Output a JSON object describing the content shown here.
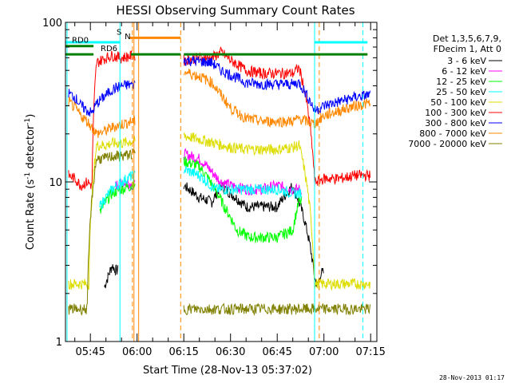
{
  "chart_data": {
    "type": "line",
    "title": "HESSI Observing Summary Count Rates",
    "xlabel": "Start Time (28-Nov-13 05:37:02)",
    "ylabel": "Count Rate (s",
    "ylabel_sup": "-1",
    "ylabel_tail": " detector",
    "ylabel_close": ")",
    "yscale": "log",
    "ylim": [
      1,
      100
    ],
    "xlim": [
      "05:37",
      "07:17"
    ],
    "y_ticks": [
      {
        "value": 1,
        "label": "1"
      },
      {
        "value": 10,
        "label": "10"
      },
      {
        "value": 100,
        "label": "100"
      }
    ],
    "x_ticks": [
      {
        "value": "05:45",
        "label": "05:45"
      },
      {
        "value": "06:00",
        "label": "06:00"
      },
      {
        "value": "06:15",
        "label": "06:15"
      },
      {
        "value": "06:30",
        "label": "06:30"
      },
      {
        "value": "06:45",
        "label": "06:45"
      },
      {
        "value": "07:00",
        "label": "07:00"
      },
      {
        "value": "07:15",
        "label": "07:15"
      }
    ],
    "legend_position": "right",
    "legend_header": [
      "Det 1,3,5,6,7,9,",
      "FDecim 1, Att 0"
    ],
    "series": [
      {
        "name": "3 - 6 keV",
        "color": "#000000",
        "points": [
          [
            "05:49:30",
            2.2
          ],
          [
            "05:50:30",
            2.5
          ],
          [
            "05:52:00",
            3.0
          ],
          [
            "05:53:00",
            2.8
          ],
          [
            "06:15:00",
            9.5
          ],
          [
            "06:20:00",
            8.0
          ],
          [
            "06:24:00",
            7.5
          ],
          [
            "06:27:00",
            9.5
          ],
          [
            "06:30:00",
            8.5
          ],
          [
            "06:35:00",
            7.0
          ],
          [
            "06:40:00",
            7.0
          ],
          [
            "06:45:00",
            7.0
          ],
          [
            "06:50:00",
            9.5
          ],
          [
            "06:52:00",
            7.5
          ],
          [
            "06:57:00",
            2.5
          ],
          [
            "06:58:00",
            2.2
          ],
          [
            "06:59:00",
            2.7
          ]
        ]
      },
      {
        "name": "6 - 12 keV",
        "color": "#ff00ff",
        "points": [
          [
            "05:53:00",
            9.5
          ],
          [
            "05:55:00",
            9.8
          ],
          [
            "05:57:00",
            10.0
          ],
          [
            "05:58:30",
            9.5
          ],
          [
            "06:15:00",
            15.0
          ],
          [
            "06:20:00",
            14.0
          ],
          [
            "06:25:00",
            11.0
          ],
          [
            "06:27:00",
            10.0
          ],
          [
            "06:30:00",
            9.5
          ],
          [
            "06:35:00",
            9.0
          ],
          [
            "06:40:00",
            9.0
          ],
          [
            "06:45:00",
            9.5
          ],
          [
            "06:50:00",
            9.0
          ],
          [
            "06:52:00",
            9.0
          ]
        ]
      },
      {
        "name": "12 - 25 keV",
        "color": "#00ff00",
        "points": [
          [
            "05:48:00",
            6.5
          ],
          [
            "05:50:00",
            7.5
          ],
          [
            "05:52:00",
            8.5
          ],
          [
            "05:55:00",
            9.0
          ],
          [
            "05:58:30",
            9.5
          ],
          [
            "06:15:00",
            13.5
          ],
          [
            "06:20:00",
            12.5
          ],
          [
            "06:25:00",
            9.0
          ],
          [
            "06:28:00",
            7.0
          ],
          [
            "06:32:00",
            5.0
          ],
          [
            "06:36:00",
            4.5
          ],
          [
            "06:40:00",
            4.5
          ],
          [
            "06:45:00",
            4.5
          ],
          [
            "06:50:00",
            5.0
          ],
          [
            "06:52:00",
            7.5
          ]
        ]
      },
      {
        "name": "25 - 50 keV",
        "color": "#00ffff",
        "points": [
          [
            "05:48:00",
            7.0
          ],
          [
            "05:50:00",
            8.0
          ],
          [
            "05:52:00",
            9.0
          ],
          [
            "05:55:00",
            10.0
          ],
          [
            "05:58:30",
            11.0
          ],
          [
            "06:15:00",
            12.0
          ],
          [
            "06:20:00",
            11.0
          ],
          [
            "06:25:00",
            9.0
          ],
          [
            "06:30:00",
            9.0
          ],
          [
            "06:40:00",
            9.0
          ],
          [
            "06:45:00",
            9.0
          ],
          [
            "06:50:00",
            8.5
          ],
          [
            "06:52:00",
            8.5
          ]
        ]
      },
      {
        "name": "50 - 100 keV",
        "color": "#dddd00",
        "points": [
          [
            "05:38:00",
            2.3
          ],
          [
            "05:42:00",
            2.3
          ],
          [
            "05:44:30",
            2.3
          ],
          [
            "05:47:00",
            17.0
          ],
          [
            "05:50:00",
            17.0
          ],
          [
            "05:52:00",
            17.5
          ],
          [
            "05:55:00",
            17.5
          ],
          [
            "05:58:30",
            18.0
          ],
          [
            "06:15:00",
            19.5
          ],
          [
            "06:20:00",
            18.5
          ],
          [
            "06:25:00",
            17.5
          ],
          [
            "06:30:00",
            16.5
          ],
          [
            "06:35:00",
            16.0
          ],
          [
            "06:40:00",
            16.0
          ],
          [
            "06:45:00",
            16.0
          ],
          [
            "06:50:00",
            16.5
          ],
          [
            "06:52:00",
            17.0
          ],
          [
            "06:57:00",
            2.3
          ],
          [
            "07:00:00",
            2.3
          ],
          [
            "07:05:00",
            2.3
          ],
          [
            "07:10:00",
            2.3
          ],
          [
            "07:14:00",
            2.3
          ]
        ]
      },
      {
        "name": "100 - 300 keV",
        "color": "#ff0000",
        "points": [
          [
            "05:38:00",
            11.0
          ],
          [
            "05:40:00",
            10.5
          ],
          [
            "05:42:00",
            9.5
          ],
          [
            "05:44:00",
            10.0
          ],
          [
            "05:45:30",
            9.5
          ],
          [
            "05:47:00",
            56.0
          ],
          [
            "05:50:00",
            60.0
          ],
          [
            "05:52:00",
            62.0
          ],
          [
            "05:55:00",
            60.0
          ],
          [
            "05:58:30",
            62.0
          ],
          [
            "06:15:00",
            58.0
          ],
          [
            "06:20:00",
            60.0
          ],
          [
            "06:24:00",
            60.0
          ],
          [
            "06:27:00",
            65.0
          ],
          [
            "06:30:00",
            58.0
          ],
          [
            "06:35:00",
            50.0
          ],
          [
            "06:40:00",
            48.0
          ],
          [
            "06:45:00",
            48.0
          ],
          [
            "06:50:00",
            48.0
          ],
          [
            "06:52:00",
            52.0
          ],
          [
            "06:57:00",
            10.0
          ],
          [
            "07:00:00",
            10.5
          ],
          [
            "07:05:00",
            10.5
          ],
          [
            "07:10:00",
            11.0
          ],
          [
            "07:14:00",
            11.0
          ]
        ]
      },
      {
        "name": "300 - 800 keV",
        "color": "#0000ff",
        "points": [
          [
            "05:38:00",
            36.0
          ],
          [
            "05:40:00",
            34.0
          ],
          [
            "05:42:00",
            30.0
          ],
          [
            "05:44:00",
            28.0
          ],
          [
            "05:45:30",
            27.0
          ],
          [
            "05:47:00",
            31.0
          ],
          [
            "05:50:00",
            35.0
          ],
          [
            "05:52:00",
            38.0
          ],
          [
            "05:55:00",
            40.0
          ],
          [
            "05:58:30",
            41.0
          ],
          [
            "06:15:00",
            58.0
          ],
          [
            "06:20:00",
            57.0
          ],
          [
            "06:24:00",
            56.0
          ],
          [
            "06:27:00",
            50.0
          ],
          [
            "06:30:00",
            47.0
          ],
          [
            "06:35:00",
            42.0
          ],
          [
            "06:40:00",
            41.0
          ],
          [
            "06:45:00",
            41.0
          ],
          [
            "06:50:00",
            41.0
          ],
          [
            "06:52:00",
            42.0
          ],
          [
            "06:57:00",
            28.0
          ],
          [
            "07:00:00",
            30.0
          ],
          [
            "07:05:00",
            32.0
          ],
          [
            "07:10:00",
            34.0
          ],
          [
            "07:14:00",
            35.0
          ]
        ]
      },
      {
        "name": "800 - 7000 keV",
        "color": "#ff8800",
        "points": [
          [
            "05:38:00",
            32.0
          ],
          [
            "05:40:00",
            29.0
          ],
          [
            "05:42:00",
            26.0
          ],
          [
            "05:44:00",
            24.0
          ],
          [
            "05:45:30",
            22.0
          ],
          [
            "05:47:00",
            20.0
          ],
          [
            "05:50:00",
            21.0
          ],
          [
            "05:52:00",
            22.0
          ],
          [
            "05:55:00",
            23.0
          ],
          [
            "05:58:30",
            24.0
          ],
          [
            "06:15:00",
            49.0
          ],
          [
            "06:20:00",
            46.0
          ],
          [
            "06:24:00",
            42.0
          ],
          [
            "06:27:00",
            35.0
          ],
          [
            "06:30:00",
            29.0
          ],
          [
            "06:35:00",
            25.0
          ],
          [
            "06:40:00",
            24.0
          ],
          [
            "06:45:00",
            24.0
          ],
          [
            "06:50:00",
            24.0
          ],
          [
            "06:52:00",
            25.0
          ],
          [
            "06:57:00",
            23.0
          ],
          [
            "07:00:00",
            26.0
          ],
          [
            "07:05:00",
            28.0
          ],
          [
            "07:10:00",
            30.0
          ],
          [
            "07:14:00",
            31.0
          ]
        ]
      },
      {
        "name": "7000 - 20000 keV",
        "color": "#808000",
        "points": [
          [
            "05:38:00",
            1.6
          ],
          [
            "05:42:00",
            1.6
          ],
          [
            "05:44:00",
            1.6
          ],
          [
            "05:47:00",
            14.0
          ],
          [
            "05:50:00",
            14.0
          ],
          [
            "05:52:00",
            14.5
          ],
          [
            "05:55:00",
            14.5
          ],
          [
            "05:58:30",
            15.0
          ],
          [
            "06:15:00",
            1.6
          ],
          [
            "06:20:00",
            1.6
          ],
          [
            "06:25:00",
            1.6
          ],
          [
            "06:30:00",
            1.6
          ],
          [
            "06:35:00",
            1.6
          ],
          [
            "06:40:00",
            1.6
          ],
          [
            "06:45:00",
            1.6
          ],
          [
            "06:50:00",
            1.6
          ],
          [
            "06:57:00",
            1.6
          ],
          [
            "07:00:00",
            1.6
          ],
          [
            "07:05:00",
            1.6
          ],
          [
            "07:10:00",
            1.6
          ],
          [
            "07:14:00",
            1.6
          ]
        ]
      }
    ],
    "state_bars": [
      {
        "label": "S",
        "color": "#ff8800",
        "y": 80,
        "segments": [
          [
            "05:57:30",
            "06:14:00"
          ]
        ]
      },
      {
        "label": "N",
        "color": "#00ffff",
        "y": 75,
        "segments": [
          [
            "05:37:00",
            "05:54:30"
          ],
          [
            "06:57:00",
            "07:14:00"
          ]
        ]
      },
      {
        "label": "RD0",
        "color": "#008000",
        "y": 71,
        "segments": [
          [
            "05:37:00",
            "05:46:00"
          ]
        ]
      },
      {
        "label": "RD6",
        "color": "#008000",
        "y": 63,
        "segments": [
          [
            "05:37:00",
            "05:46:00"
          ],
          [
            "05:58:00",
            "06:14:00"
          ],
          [
            "06:15:00",
            "07:14:00"
          ]
        ]
      }
    ],
    "vertical_lines": [
      {
        "x": "05:37:30",
        "color": "#00ffff",
        "style": "solid"
      },
      {
        "x": "05:54:30",
        "color": "#00ffff",
        "style": "solid"
      },
      {
        "x": "05:58:30",
        "color": "#ff8800",
        "style": "dashed"
      },
      {
        "x": "05:59:00",
        "color": "#ff8800",
        "style": "solid"
      },
      {
        "x": "06:00:30",
        "color": "#ff8800",
        "style": "solid"
      },
      {
        "x": "06:14:00",
        "color": "#ff8800",
        "style": "dashed"
      },
      {
        "x": "06:57:00",
        "color": "#00ffff",
        "style": "solid"
      },
      {
        "x": "06:58:30",
        "color": "#ff8800",
        "style": "dashed"
      },
      {
        "x": "07:12:30",
        "color": "#00ffff",
        "style": "dashed"
      }
    ],
    "footer_timestamp": "28-Nov-2013 01:17"
  }
}
